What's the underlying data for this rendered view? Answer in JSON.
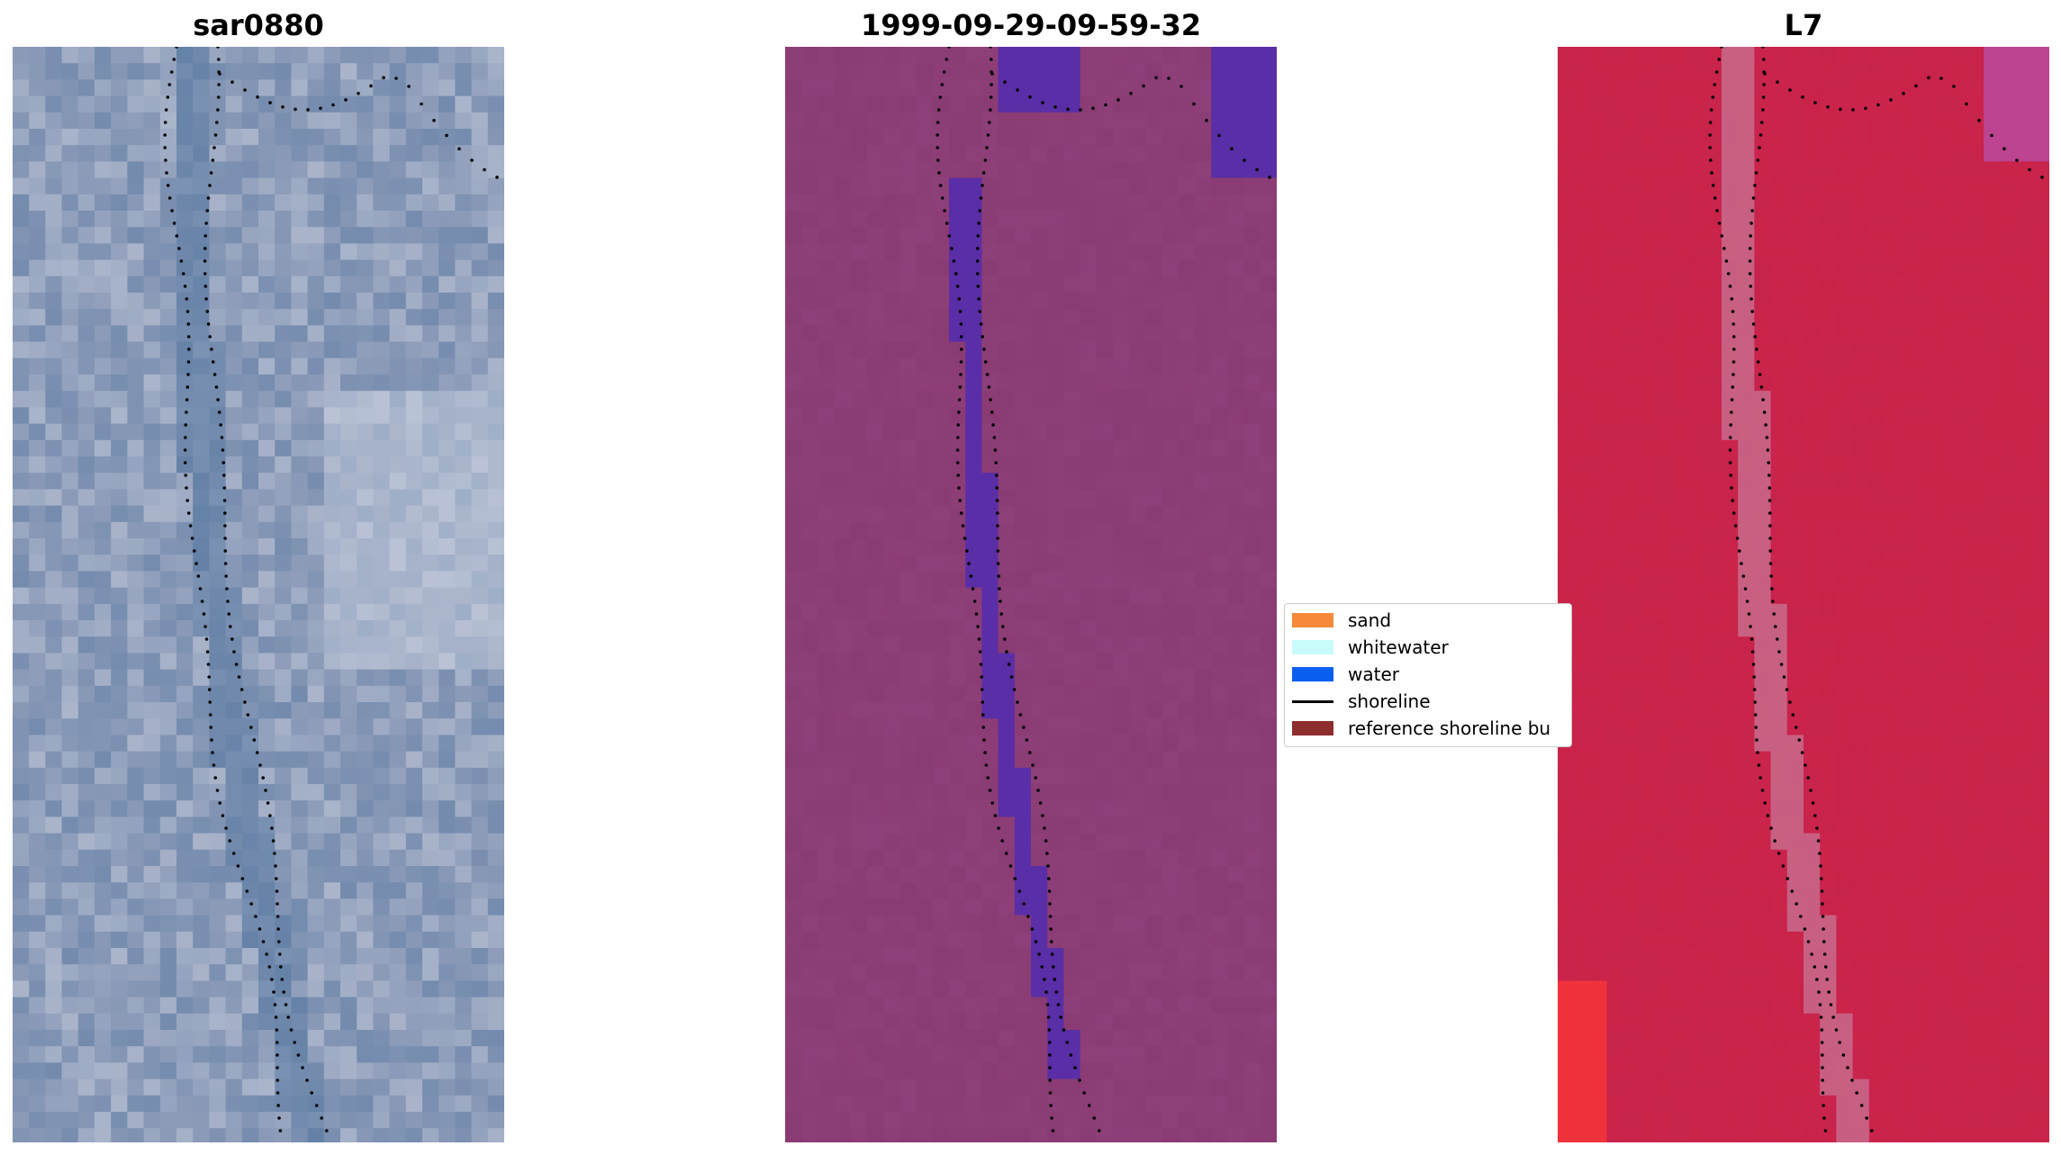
{
  "panels": [
    {
      "title": "sar0880",
      "style": "rgb"
    },
    {
      "title": "1999-09-29-09-59-32",
      "style": "classified"
    },
    {
      "title": "L7",
      "style": "index"
    }
  ],
  "legend": {
    "items": [
      {
        "label": "sand",
        "kind": "patch",
        "color": "#f58a3a"
      },
      {
        "label": "whitewater",
        "kind": "patch",
        "color": "#c8fbfb"
      },
      {
        "label": "water",
        "kind": "patch",
        "color": "#0b5ff0"
      },
      {
        "label": "shoreline",
        "kind": "line",
        "color": "#000000"
      },
      {
        "label": "reference shoreline bu",
        "kind": "patch",
        "color": "#8e2d2d"
      }
    ]
  },
  "colors": {
    "rgb_base": "#8c9bb8",
    "rgb_dark": "#5b7ba3",
    "rgb_light": "#c9d0e0",
    "classified_base": "#8a3b73",
    "classified_water": "#5a2ea6",
    "index_base": "#c8234a",
    "index_light": "#c7799a",
    "shoreline": "#000000"
  }
}
